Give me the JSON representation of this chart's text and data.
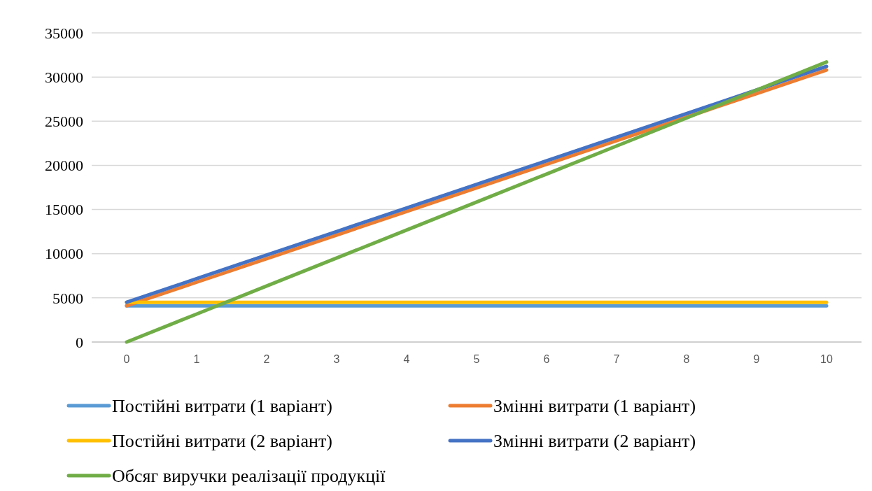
{
  "chart_data": {
    "type": "line",
    "categories": [
      "0",
      "1",
      "2",
      "3",
      "4",
      "5",
      "6",
      "7",
      "8",
      "9",
      "10"
    ],
    "ylim": [
      0,
      35000
    ],
    "yticks": [
      0,
      5000,
      10000,
      15000,
      20000,
      25000,
      30000,
      35000
    ],
    "grid": "y",
    "legend": "bottom",
    "marker": "none",
    "line_style": "solid",
    "series": [
      {
        "name": "Постійні витрати (1 варіант)",
        "color": "#5b9bd5",
        "values": [
          4100,
          4100,
          4100,
          4100,
          4100,
          4100,
          4100,
          4100,
          4100,
          4100,
          4100
        ]
      },
      {
        "name": "Змінні витрати (1 варіант)",
        "color": "#ed7d31",
        "values": [
          4100,
          6770,
          9440,
          12110,
          14780,
          17450,
          20120,
          22790,
          25460,
          28130,
          30800
        ]
      },
      {
        "name": "Постійні витрати (2 варіант)",
        "color": "#ffc000",
        "values": [
          4500,
          4500,
          4500,
          4500,
          4500,
          4500,
          4500,
          4500,
          4500,
          4500,
          4500
        ]
      },
      {
        "name": "Змінні витрати (2 варіант)",
        "color": "#4472c4",
        "values": [
          4500,
          7170,
          9840,
          12510,
          15180,
          17850,
          20520,
          23190,
          25860,
          28530,
          31200
        ]
      },
      {
        "name": "Обсяг виручки реалізації продукції",
        "color": "#70ad47",
        "values": [
          0,
          3170,
          6340,
          9510,
          12680,
          15850,
          19020,
          22190,
          25360,
          28530,
          31700
        ]
      }
    ]
  }
}
